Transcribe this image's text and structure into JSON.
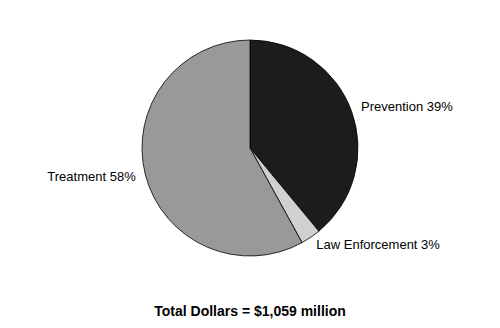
{
  "chart_data": {
    "type": "pie",
    "categories": [
      "Prevention 39%",
      "Law Enforcement 3%",
      "Treatment 58%"
    ],
    "values": [
      39,
      3,
      58
    ],
    "colors": [
      "#1c1c1c",
      "#d0d0d0",
      "#999999"
    ],
    "annotations": [
      "Total Dollars = $1,059 million"
    ]
  }
}
